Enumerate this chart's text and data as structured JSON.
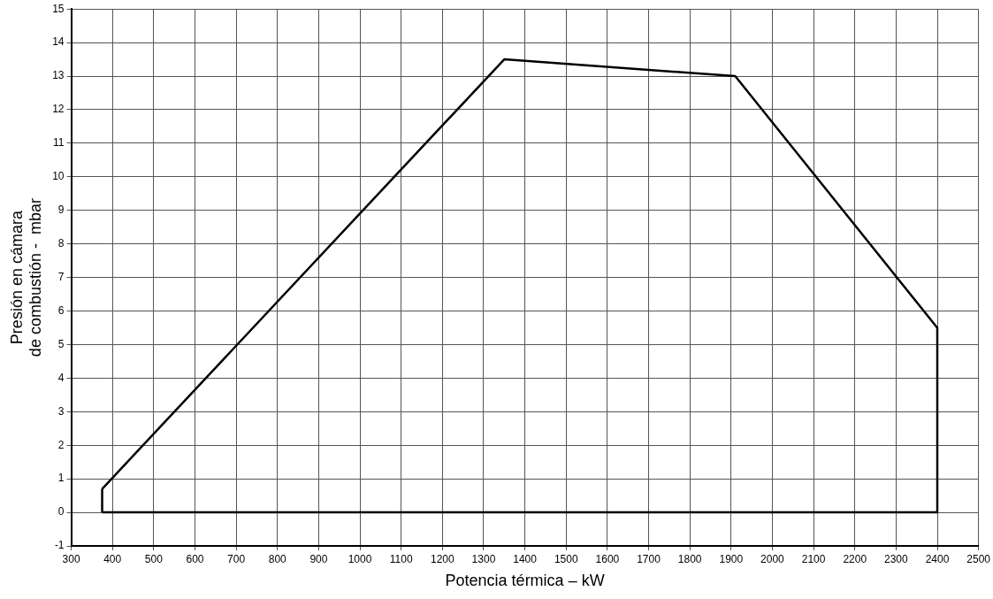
{
  "chart_data": {
    "type": "line",
    "xlabel": "Potencia térmica – kW",
    "ylabel": "Presión en cámara\nde combustión -  mbar",
    "series": [
      {
        "color": "#000000",
        "x": [
          375,
          1350,
          1910,
          2400
        ],
        "values": [
          0.7,
          13.5,
          13,
          5.5
        ]
      },
      {
        "color": "#000000",
        "x": [
          375,
          2400
        ],
        "values": [
          0,
          0
        ]
      },
      {
        "color": "#000000",
        "x": [
          375,
          375
        ],
        "values": [
          0,
          0.7
        ]
      },
      {
        "color": "#000000",
        "x": [
          2400,
          2400
        ],
        "values": [
          5.5,
          0
        ]
      }
    ],
    "xlim": [
      300,
      2500
    ],
    "xticks": [
      300,
      400,
      500,
      600,
      700,
      800,
      900,
      1000,
      1100,
      1200,
      1300,
      1400,
      1500,
      1600,
      1700,
      1800,
      1900,
      2000,
      2100,
      2200,
      2300,
      2400,
      2500
    ],
    "ylim": [
      -1,
      15
    ],
    "yticks": [
      -1,
      0,
      1,
      2,
      3,
      4,
      5,
      6,
      7,
      8,
      9,
      10,
      11,
      12,
      13,
      14,
      15
    ],
    "grid": true,
    "legend": false,
    "marker": "none",
    "line_style": "solid"
  }
}
